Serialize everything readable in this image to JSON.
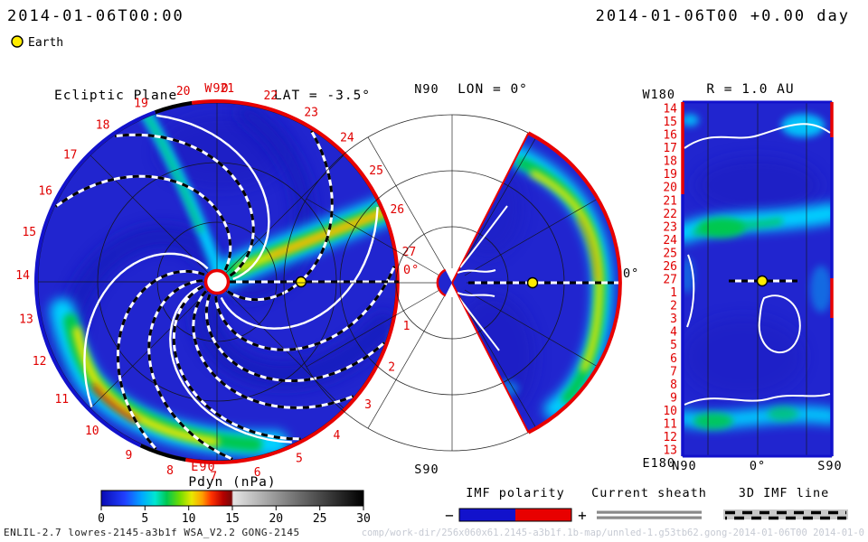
{
  "header": {
    "datetime_left": "2014-01-06T00:00",
    "datetime_right": "2014-01-06T00 +0.00 day",
    "earth_marker_label": "Earth"
  },
  "colors": {
    "background": "#ffffff",
    "ambient_wind_blue": "#2125cf",
    "tick_red": "#e00000",
    "earth_yellow": "#ffec00",
    "polarity_negative_blue": "#1212cc",
    "polarity_positive_red": "#e80000"
  },
  "chart_data": [
    {
      "type": "heatmap",
      "panel": "ecliptic-plane",
      "title": "Ecliptic Plane",
      "lat_label": "LAT = -3.5°",
      "quantity": "Pdyn (nPa)",
      "projection": "polar",
      "radial_range_au": [
        0.1,
        2.1
      ],
      "axis_labels": {
        "top": "W90",
        "bottom": "E90",
        "right": "0°"
      },
      "ring_tick_labels": [
        "1",
        "2",
        "3",
        "4",
        "5",
        "6",
        "7",
        "8",
        "9",
        "10",
        "11",
        "12",
        "13",
        "14",
        "15",
        "16",
        "17",
        "18",
        "19",
        "20",
        "21",
        "22",
        "23",
        "24",
        "25",
        "26",
        "27"
      ],
      "earth_marker": {
        "longitude": "0°",
        "radius_au": 1.0
      },
      "ambient_value_npa": 2,
      "features": [
        {
          "kind": "high-pressure stream",
          "desc": "narrow stream from the inner boundary near lon 0° spiraling out to the rim between ticks 25 and 27",
          "peak_npa": 10
        },
        {
          "kind": "high-pressure stream",
          "desc": "broad bright stream along the outer boundary between ticks 8 and 12 (lower left), small red core",
          "peak_npa": 14
        },
        {
          "kind": "moderate stream",
          "desc": "cyan arc near ticks 17-19 (upper left)",
          "peak_npa": 6
        }
      ],
      "overlays": [
        "3D IMF lines (white/black dashed Parker spirals)",
        "current sheath (solid white spirals)",
        "Sun-Earth dashed line"
      ],
      "boundary_polarity": {
        "red_arc": "from tick 20 clockwise through W, 0° and E to tick 7",
        "blue_arc": "from tick 8 to tick 19"
      }
    },
    {
      "type": "heatmap",
      "panel": "meridional-plane",
      "lon_label": "LON = 0°",
      "axis_labels": {
        "top": "N90",
        "bottom": "S90",
        "right": "0°"
      },
      "lat_range_deg": [
        -60,
        60
      ],
      "earth_marker": {
        "lat": "-3.5°",
        "radius_au": 1.0
      },
      "features": [
        {
          "kind": "high-pressure arc",
          "desc": "bright band hugging the outer boundary from ~N50 to ~S45, yellow peak near the equator",
          "peak_npa": 10
        }
      ],
      "overlays": [
        "current sheath (white curls near apex)",
        "equatorial dashed line",
        "Earth marker"
      ]
    },
    {
      "type": "heatmap",
      "panel": "constant-radius-shell",
      "title": "R = 1.0 AU",
      "axis_labels": {
        "top_left": "W180",
        "bottom_left": "E180"
      },
      "x_tick_labels": [
        "N90",
        "0°",
        "S90"
      ],
      "row_tick_labels": [
        "14",
        "15",
        "16",
        "17",
        "18",
        "19",
        "20",
        "21",
        "22",
        "23",
        "24",
        "25",
        "26",
        "27",
        "1",
        "2",
        "3",
        "4",
        "5",
        "6",
        "7",
        "8",
        "9",
        "10",
        "11",
        "12",
        "13"
      ],
      "lat_grid_deg": [
        -60,
        0,
        60
      ],
      "earth_marker": {
        "lat": "-3.5°",
        "lon": "0°"
      },
      "features": [
        {
          "kind": "enhanced band",
          "desc": "cyan/green band across rows 21-23 with bright patch left of center",
          "peak_npa": 7
        },
        {
          "kind": "enhanced band",
          "desc": "cyan band across rows 9-11 near the bottom",
          "peak_npa": 6
        },
        {
          "kind": "patch",
          "desc": "cyan patches near rows 14-16 at the top",
          "peak_npa": 5
        }
      ],
      "overlays": [
        "current sheath contours (white)",
        "Earth marker with short dashed line"
      ]
    }
  ],
  "colorbar": {
    "label": "Pdyn (nPa)",
    "ticks": [
      "0",
      "5",
      "10",
      "15",
      "20",
      "25",
      "30"
    ],
    "range": [
      0,
      30
    ],
    "scale": "rainbow from 0 to 15, grayscale from 15 to 30"
  },
  "legends": {
    "imf_polarity": {
      "title": "IMF polarity",
      "negative": "−",
      "positive": "+",
      "negative_color": "#1212cc",
      "positive_color": "#e80000"
    },
    "current_sheath": {
      "title": "Current sheath",
      "line_color": "#8a8a8a"
    },
    "imf_line_3d": {
      "title": "3D IMF line"
    }
  },
  "footer": {
    "model_run": "ENLIL-2.7 lowres-2145-a3b1f WSA_V2.2 GONG-2145",
    "run_path": "comp/work-dir/256x060x61.2145-a3b1f.1b-map/unnled-1.g53tb62.gong-2014-01-06T00    2014-01-0"
  }
}
